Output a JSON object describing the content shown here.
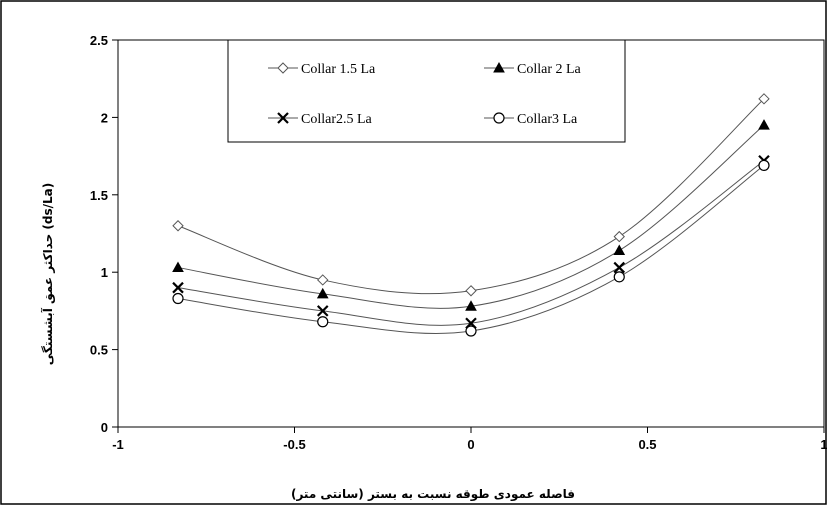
{
  "chart_data": {
    "type": "line",
    "title": "",
    "xlabel": "فاصله عمودی طوقه نسبت به بستر (سانتی متر)",
    "ylabel": "(ds/La) حداکثر عمق آبشستگی",
    "xlim": [
      -1,
      1
    ],
    "ylim": [
      0,
      2.5
    ],
    "xticks": [
      -1,
      -0.5,
      0,
      0.5,
      1
    ],
    "xtick_labels": [
      "-1",
      "-0.5",
      "0",
      "0.5",
      "1"
    ],
    "yticks": [
      0,
      0.5,
      1,
      1.5,
      2,
      2.5
    ],
    "ytick_labels": [
      "0",
      "0.5",
      "1",
      "1.5",
      "2",
      "2.5"
    ],
    "grid": false,
    "legend_position": "top-center",
    "x": [
      -0.83,
      -0.42,
      0,
      0.42,
      0.83
    ],
    "series": [
      {
        "name": "Collar 1.5 La",
        "marker": "diamond-open",
        "values": [
          1.3,
          0.95,
          0.88,
          1.23,
          2.12
        ]
      },
      {
        "name": "Collar 2 La",
        "marker": "triangle-filled",
        "values": [
          1.03,
          0.86,
          0.78,
          1.14,
          1.95
        ]
      },
      {
        "name": "Collar2.5 La",
        "marker": "x",
        "values": [
          0.9,
          0.75,
          0.67,
          1.03,
          1.72
        ]
      },
      {
        "name": "Collar3 La",
        "marker": "circle-open",
        "values": [
          0.83,
          0.68,
          0.62,
          0.97,
          1.69
        ]
      }
    ]
  }
}
